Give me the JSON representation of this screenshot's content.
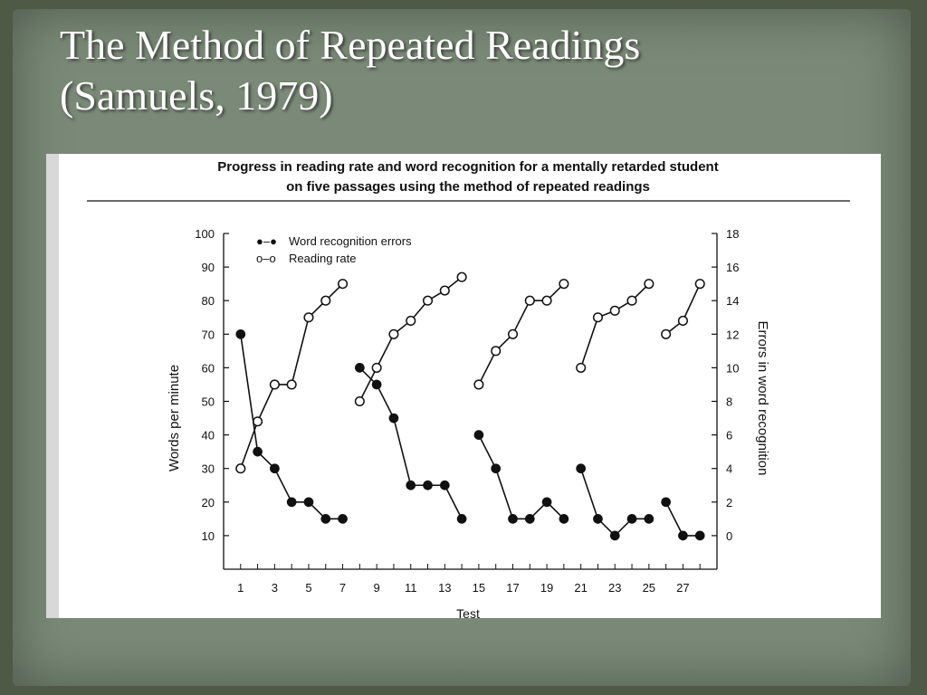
{
  "slide": {
    "title_line1": "The Method of Repeated Readings",
    "title_line2": "(Samuels, 1979)"
  },
  "chart_data": {
    "type": "line",
    "title": "Progress in reading rate and word recognition for a mentally retarded student",
    "subtitle": "on five passages using the method of repeated readings",
    "xlabel": "Test",
    "ylabel": "Words per minute",
    "y2label": "Errors in word recognition",
    "xlim": [
      0,
      29
    ],
    "ylim": [
      0,
      100
    ],
    "y2lim": [
      -2,
      18
    ],
    "x_ticks": [
      1,
      3,
      5,
      7,
      9,
      11,
      13,
      15,
      17,
      19,
      21,
      23,
      25,
      27
    ],
    "y_ticks": [
      10,
      20,
      30,
      40,
      50,
      60,
      70,
      80,
      90,
      100
    ],
    "y2_ticks": [
      0,
      2,
      4,
      6,
      8,
      10,
      12,
      14,
      16,
      18
    ],
    "legend": [
      {
        "marker": "●–●",
        "label": "Word recognition errors"
      },
      {
        "marker": "o–o",
        "label": "Reading rate"
      }
    ],
    "legend_position": "top-left",
    "series": [
      {
        "name": "Reading rate",
        "axis": "left",
        "marker": "open",
        "segments": [
          [
            [
              1,
              30
            ],
            [
              2,
              44
            ],
            [
              3,
              55
            ],
            [
              4,
              55
            ],
            [
              5,
              75
            ],
            [
              6,
              80
            ],
            [
              7,
              85
            ]
          ],
          [
            [
              8,
              50
            ],
            [
              9,
              60
            ],
            [
              10,
              70
            ],
            [
              11,
              74
            ],
            [
              12,
              80
            ],
            [
              13,
              83
            ],
            [
              14,
              87
            ]
          ],
          [
            [
              15,
              55
            ],
            [
              16,
              65
            ],
            [
              17,
              70
            ],
            [
              18,
              80
            ],
            [
              19,
              80
            ],
            [
              20,
              85
            ]
          ],
          [
            [
              21,
              60
            ],
            [
              22,
              75
            ],
            [
              23,
              77
            ],
            [
              24,
              80
            ],
            [
              25,
              85
            ]
          ],
          [
            [
              26,
              70
            ],
            [
              27,
              74
            ],
            [
              28,
              85
            ]
          ]
        ]
      },
      {
        "name": "Word recognition errors",
        "axis": "right",
        "marker": "filled",
        "segments": [
          [
            [
              1,
              12
            ],
            [
              2,
              5
            ],
            [
              3,
              4
            ],
            [
              4,
              2
            ],
            [
              5,
              2
            ],
            [
              6,
              1
            ],
            [
              7,
              1
            ]
          ],
          [
            [
              8,
              10
            ],
            [
              9,
              9
            ],
            [
              10,
              7
            ],
            [
              11,
              3
            ],
            [
              12,
              3
            ],
            [
              13,
              3
            ],
            [
              14,
              1
            ]
          ],
          [
            [
              15,
              6
            ],
            [
              16,
              4
            ],
            [
              17,
              1
            ],
            [
              18,
              1
            ],
            [
              19,
              2
            ],
            [
              20,
              1
            ]
          ],
          [
            [
              21,
              4
            ],
            [
              22,
              1
            ],
            [
              23,
              0
            ],
            [
              24,
              1
            ],
            [
              25,
              1
            ]
          ],
          [
            [
              26,
              2
            ],
            [
              27,
              0
            ],
            [
              28,
              0
            ]
          ]
        ]
      }
    ]
  }
}
